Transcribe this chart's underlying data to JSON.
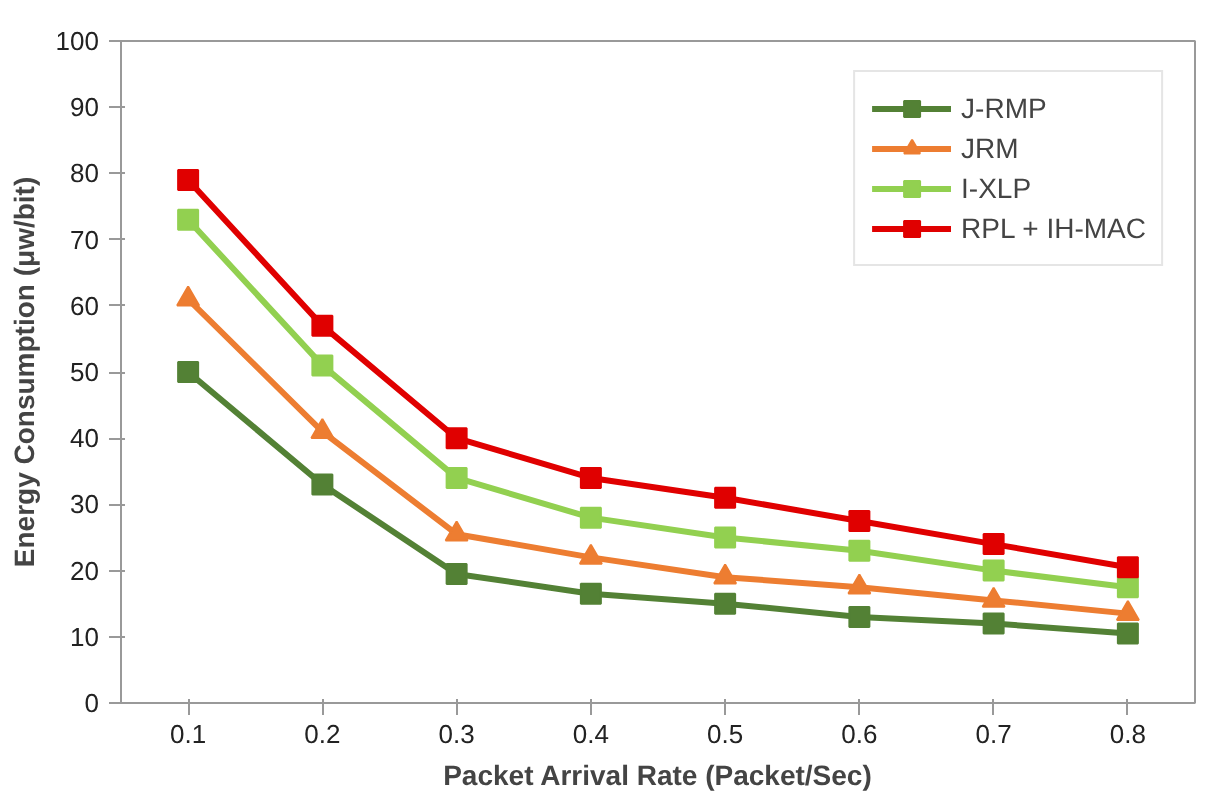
{
  "chart_data": {
    "type": "line",
    "xlabel": "Packet Arrival Rate (Packet/Sec)",
    "ylabel": "Energy Consumption (μw/bit)",
    "categories": [
      "0.1",
      "0.2",
      "0.3",
      "0.4",
      "0.5",
      "0.6",
      "0.7",
      "0.8"
    ],
    "ylim": [
      0,
      100
    ],
    "yticks": [
      0,
      10,
      20,
      30,
      40,
      50,
      60,
      70,
      80,
      90,
      100
    ],
    "grid": false,
    "legend": "top right",
    "series": [
      {
        "name": "J-RMP",
        "color": "#538135",
        "marker": "square",
        "values": [
          50,
          33,
          19.5,
          16.5,
          15,
          13,
          12,
          10.5
        ]
      },
      {
        "name": "JRM",
        "color": "#ed7d31",
        "marker": "triangle",
        "values": [
          61,
          41,
          25.5,
          22,
          19,
          17.5,
          15.5,
          13.5
        ]
      },
      {
        "name": "I-XLP",
        "color": "#92d050",
        "marker": "square",
        "values": [
          73,
          51,
          34,
          28,
          25,
          23,
          20,
          17.5
        ]
      },
      {
        "name": "RPL + IH-MAC",
        "color": "#e00000",
        "marker": "square",
        "values": [
          79,
          57,
          40,
          34,
          31,
          27.5,
          24,
          20.5
        ]
      }
    ]
  }
}
